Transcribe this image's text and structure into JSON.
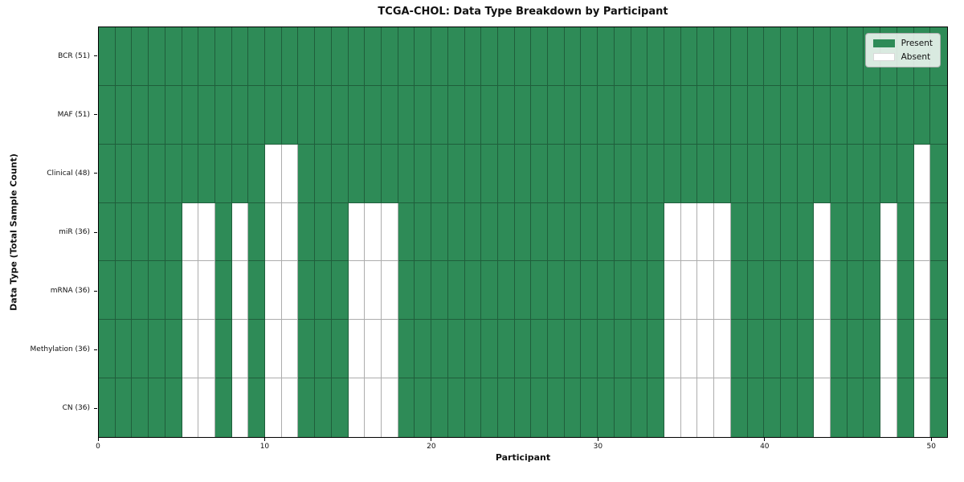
{
  "chart_data": {
    "type": "heatmap",
    "title": "TCGA-CHOL: Data Type Breakdown by Participant",
    "xlabel": "Participant",
    "ylabel": "Data Type (Total Sample Count)",
    "n_participants": 51,
    "x_ticks": [
      0,
      10,
      20,
      30,
      40,
      50
    ],
    "present_color": "#2e8b57",
    "absent_color": "#ffffff",
    "grid_line_color": "rgba(0,0,0,0.32)",
    "legend": [
      {
        "label": "Present",
        "color": "#2e8b57"
      },
      {
        "label": "Absent",
        "color": "#ffffff"
      }
    ],
    "rows": [
      {
        "label": "BCR (51)",
        "absent_participants": []
      },
      {
        "label": "MAF (51)",
        "absent_participants": []
      },
      {
        "label": "Clinical (48)",
        "absent_participants": [
          10,
          11,
          49
        ]
      },
      {
        "label": "miR (36)",
        "absent_participants": [
          5,
          6,
          8,
          10,
          11,
          15,
          16,
          17,
          34,
          35,
          36,
          37,
          43,
          47,
          49
        ]
      },
      {
        "label": "mRNA (36)",
        "absent_participants": [
          5,
          6,
          8,
          10,
          11,
          15,
          16,
          17,
          34,
          35,
          36,
          37,
          43,
          47,
          49
        ]
      },
      {
        "label": "Methylation (36)",
        "absent_participants": [
          5,
          6,
          8,
          10,
          11,
          15,
          16,
          17,
          34,
          35,
          36,
          37,
          43,
          47,
          49
        ]
      },
      {
        "label": "CN (36)",
        "absent_participants": [
          5,
          6,
          8,
          10,
          11,
          15,
          16,
          17,
          34,
          35,
          36,
          37,
          43,
          47,
          49
        ]
      }
    ]
  }
}
